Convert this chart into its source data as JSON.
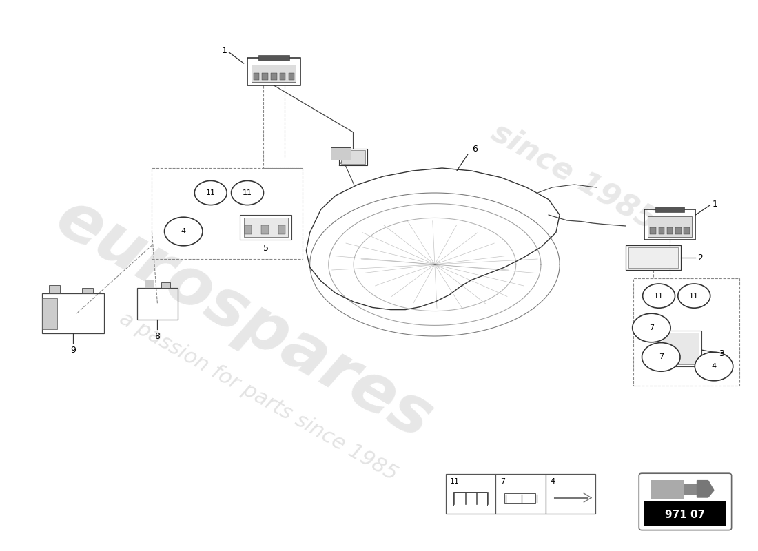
{
  "background_color": "#ffffff",
  "watermark_text": "eurospares",
  "watermark_subtext": "a passion for parts since 1985",
  "part_number": "971 07",
  "legend_items": [
    {
      "id": "11"
    },
    {
      "id": "7"
    },
    {
      "id": "4"
    }
  ],
  "line_color": "#333333",
  "dashed_color": "#888888",
  "circle_fill": "#ffffff",
  "circle_border": "#333333",
  "watermark_color": "#cccccc",
  "part_bg": "#000000",
  "part_text": "#ffffff"
}
